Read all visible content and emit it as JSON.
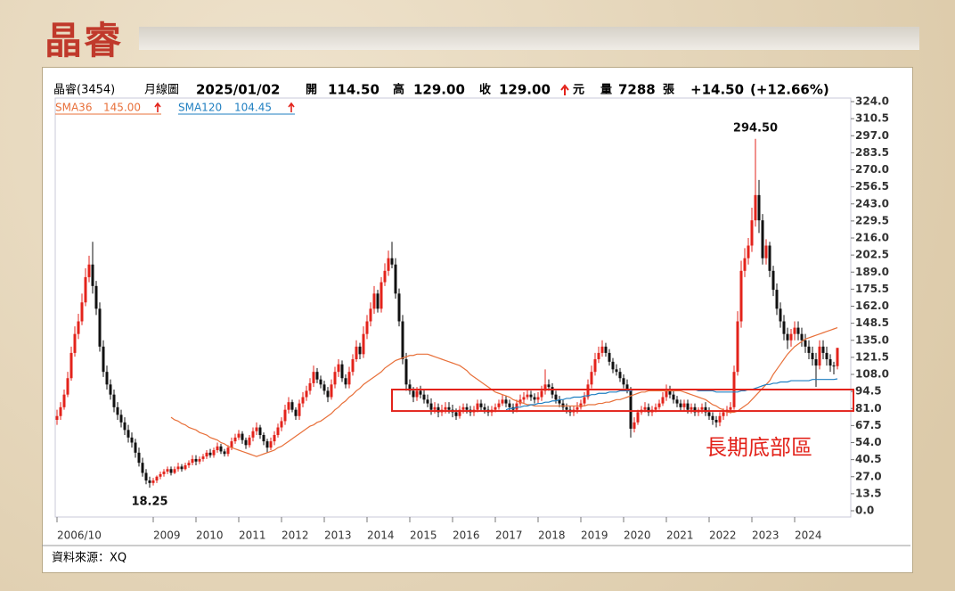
{
  "page_title": "晶睿",
  "source": "資料來源：XQ",
  "header": {
    "stock": "晶睿(3454)",
    "period": "月線圖",
    "date": "2025/01/02",
    "open_label": "開",
    "open": "114.50",
    "high_label": "高",
    "high": "129.00",
    "close_label": "收",
    "close": "129.00",
    "unit": "元",
    "volume_label": "量",
    "volume": "7288",
    "volume_unit": "張",
    "change": "+14.50",
    "change_pct": "(+12.66%)"
  },
  "chart_data": {
    "type": "candlestick",
    "ylim": [
      0,
      324
    ],
    "yticks": [
      {
        "value": 0,
        "label": "0.0"
      },
      13.5,
      {
        "value": 27,
        "label": "27.0"
      },
      40.5,
      {
        "value": 54,
        "label": "54.0"
      },
      67.5,
      {
        "value": 81,
        "label": "81.0"
      },
      94.5,
      {
        "value": 108,
        "label": "108.0"
      },
      121.5,
      {
        "value": 135,
        "label": "135.0"
      },
      148.5,
      {
        "value": 162,
        "label": "162.0"
      },
      175.5,
      {
        "value": 189,
        "label": "189.0"
      },
      202.5,
      {
        "value": 216,
        "label": "216.0"
      },
      229.5,
      {
        "value": 243,
        "label": "243.0"
      },
      256.5,
      {
        "value": 270,
        "label": "270.0"
      },
      283.5,
      {
        "value": 297,
        "label": "297.0"
      },
      310.5,
      {
        "value": 324,
        "label": "324.0"
      }
    ],
    "xticks": [
      "2006/10",
      "2009",
      "2010",
      "2011",
      "2012",
      "2013",
      "2014",
      "2015",
      "2016",
      "2017",
      "2018",
      "2019",
      "2020",
      "2021",
      "2022",
      "2023",
      "2024"
    ],
    "up_color": "#e3231b",
    "down_color": "#111111",
    "open": [
      72,
      75,
      82,
      92,
      105,
      125,
      140,
      150,
      165,
      185,
      195,
      178,
      160,
      130,
      110,
      100,
      92,
      82,
      76,
      70,
      64,
      58,
      54,
      46,
      38,
      30,
      24,
      22,
      24,
      27,
      29,
      31,
      33,
      30,
      33,
      35,
      33,
      36,
      38,
      41,
      39,
      41,
      43,
      46,
      44,
      48,
      51,
      47,
      45,
      50,
      55,
      58,
      61,
      56,
      52,
      58,
      63,
      66,
      60,
      55,
      50,
      55,
      60,
      66,
      71,
      80,
      86,
      80,
      75,
      85,
      90,
      95,
      101,
      110,
      104,
      100,
      95,
      90,
      100,
      110,
      116,
      105,
      100,
      110,
      120,
      130,
      124,
      140,
      150,
      160,
      172,
      160,
      181,
      190,
      200,
      195,
      172,
      150,
      120,
      100,
      95,
      90,
      95,
      92,
      88,
      85,
      80,
      82,
      78,
      80,
      82,
      80,
      78,
      75,
      80,
      82,
      80,
      78,
      80,
      85,
      82,
      80,
      78,
      80,
      82,
      85,
      88,
      85,
      82,
      80,
      85,
      88,
      90,
      92,
      90,
      88,
      90,
      95,
      100,
      98,
      92,
      88,
      85,
      82,
      80,
      78,
      80,
      82,
      85,
      90,
      100,
      110,
      120,
      125,
      130,
      125,
      118,
      112,
      110,
      105,
      100,
      95,
      65,
      70,
      78,
      80,
      82,
      78,
      80,
      82,
      85,
      90,
      95,
      92,
      88,
      85,
      82,
      85,
      80,
      82,
      78,
      80,
      82,
      78,
      75,
      72,
      70,
      75,
      78,
      80,
      82,
      110,
      150,
      190,
      200,
      210,
      230,
      250,
      230,
      200,
      210,
      190,
      175,
      160,
      150,
      140,
      135,
      140,
      145,
      140,
      135,
      130,
      125,
      120,
      115,
      130,
      125,
      120,
      115,
      114.5
    ],
    "high": [
      80,
      86,
      96,
      110,
      130,
      146,
      156,
      172,
      192,
      202,
      213,
      182,
      165,
      135,
      115,
      104,
      96,
      86,
      80,
      74,
      68,
      62,
      57,
      50,
      42,
      33,
      27,
      26,
      28,
      31,
      33,
      35,
      35,
      35,
      38,
      37,
      38,
      40,
      44,
      44,
      43,
      45,
      48,
      49,
      50,
      54,
      53,
      49,
      52,
      58,
      61,
      64,
      63,
      58,
      60,
      66,
      70,
      68,
      62,
      57,
      58,
      63,
      69,
      74,
      84,
      90,
      88,
      82,
      88,
      94,
      99,
      105,
      115,
      113,
      107,
      103,
      98,
      104,
      114,
      120,
      119,
      108,
      114,
      124,
      135,
      133,
      146,
      155,
      165,
      178,
      175,
      185,
      196,
      206,
      213,
      200,
      176,
      155,
      125,
      104,
      98,
      98,
      99,
      96,
      92,
      89,
      86,
      85,
      84,
      86,
      86,
      84,
      81,
      83,
      85,
      85,
      83,
      83,
      88,
      88,
      85,
      83,
      83,
      85,
      88,
      92,
      91,
      88,
      85,
      88,
      92,
      94,
      96,
      95,
      93,
      94,
      99,
      112,
      104,
      101,
      95,
      91,
      88,
      85,
      83,
      83,
      86,
      88,
      94,
      104,
      115,
      125,
      130,
      135,
      133,
      128,
      121,
      116,
      113,
      108,
      104,
      98,
      74,
      80,
      83,
      86,
      85,
      83,
      85,
      88,
      94,
      100,
      99,
      95,
      91,
      88,
      88,
      88,
      85,
      85,
      82,
      85,
      86,
      82,
      78,
      75,
      78,
      81,
      83,
      86,
      115,
      158,
      198,
      208,
      216,
      240,
      294.5,
      262,
      235,
      215,
      213,
      194,
      180,
      165,
      155,
      145,
      144,
      150,
      150,
      145,
      140,
      135,
      130,
      125,
      135,
      135,
      130,
      124,
      118,
      129
    ],
    "low": [
      68,
      72,
      80,
      90,
      103,
      122,
      136,
      147,
      162,
      181,
      172,
      155,
      126,
      106,
      96,
      88,
      78,
      72,
      66,
      60,
      54,
      50,
      42,
      35,
      27,
      21,
      18.25,
      20,
      22,
      25,
      27,
      29,
      28,
      29,
      31,
      31,
      32,
      34,
      36,
      36,
      37,
      39,
      41,
      42,
      42,
      46,
      45,
      43,
      43,
      48,
      53,
      56,
      53,
      49,
      50,
      55,
      60,
      57,
      52,
      46,
      48,
      52,
      58,
      63,
      68,
      77,
      78,
      72,
      72,
      82,
      87,
      92,
      98,
      101,
      97,
      92,
      86,
      88,
      97,
      106,
      102,
      97,
      97,
      107,
      118,
      120,
      121,
      136,
      146,
      156,
      157,
      157,
      178,
      186,
      192,
      168,
      146,
      116,
      95,
      92,
      86,
      87,
      89,
      85,
      82,
      76,
      77,
      74,
      75,
      77,
      77,
      74,
      72,
      73,
      77,
      77,
      75,
      75,
      78,
      79,
      77,
      75,
      75,
      78,
      80,
      83,
      82,
      79,
      77,
      78,
      83,
      85,
      88,
      87,
      85,
      85,
      87,
      92,
      95,
      89,
      85,
      82,
      79,
      77,
      75,
      75,
      77,
      80,
      83,
      88,
      97,
      107,
      117,
      122,
      122,
      115,
      109,
      107,
      102,
      97,
      93,
      58,
      62,
      68,
      76,
      78,
      75,
      75,
      78,
      80,
      83,
      87,
      89,
      85,
      82,
      79,
      79,
      77,
      77,
      75,
      75,
      77,
      75,
      72,
      68,
      66,
      67,
      72,
      75,
      77,
      80,
      107,
      145,
      185,
      195,
      205,
      225,
      220,
      195,
      195,
      185,
      170,
      155,
      145,
      135,
      128,
      130,
      135,
      135,
      130,
      125,
      120,
      115,
      98,
      112,
      120,
      115,
      110,
      108,
      112
    ],
    "close": [
      75,
      82,
      92,
      105,
      125,
      140,
      150,
      165,
      185,
      195,
      178,
      160,
      130,
      110,
      100,
      92,
      82,
      76,
      70,
      64,
      58,
      54,
      46,
      38,
      30,
      24,
      22,
      24,
      27,
      29,
      31,
      33,
      30,
      33,
      35,
      33,
      36,
      38,
      41,
      39,
      41,
      43,
      46,
      44,
      48,
      51,
      47,
      45,
      50,
      55,
      58,
      61,
      56,
      52,
      58,
      63,
      66,
      60,
      55,
      50,
      55,
      60,
      66,
      71,
      80,
      86,
      80,
      75,
      85,
      90,
      95,
      101,
      110,
      104,
      100,
      95,
      90,
      100,
      110,
      116,
      105,
      100,
      110,
      120,
      130,
      124,
      140,
      150,
      160,
      172,
      160,
      181,
      190,
      200,
      195,
      172,
      150,
      120,
      100,
      95,
      90,
      95,
      92,
      88,
      85,
      80,
      82,
      78,
      80,
      82,
      80,
      78,
      75,
      80,
      82,
      80,
      78,
      80,
      85,
      82,
      80,
      78,
      80,
      82,
      85,
      88,
      85,
      82,
      80,
      85,
      88,
      90,
      92,
      90,
      88,
      90,
      95,
      100,
      98,
      92,
      88,
      85,
      82,
      80,
      78,
      80,
      82,
      85,
      90,
      100,
      110,
      120,
      125,
      130,
      125,
      118,
      112,
      110,
      105,
      100,
      95,
      65,
      70,
      78,
      80,
      82,
      78,
      80,
      82,
      85,
      90,
      95,
      92,
      88,
      85,
      82,
      85,
      80,
      82,
      78,
      80,
      82,
      78,
      75,
      72,
      70,
      75,
      78,
      80,
      82,
      110,
      150,
      190,
      200,
      210,
      230,
      250,
      230,
      200,
      210,
      190,
      175,
      160,
      150,
      140,
      135,
      140,
      145,
      140,
      135,
      130,
      125,
      120,
      115,
      130,
      125,
      120,
      115,
      114.5,
      129
    ],
    "series": [
      {
        "name": "SMA36",
        "last": "145.00",
        "color": "#e8703a",
        "values": [
          null,
          null,
          null,
          null,
          null,
          null,
          null,
          null,
          null,
          null,
          null,
          null,
          null,
          null,
          null,
          null,
          null,
          null,
          null,
          null,
          null,
          null,
          null,
          null,
          null,
          null,
          null,
          null,
          null,
          null,
          null,
          null,
          74,
          72,
          71,
          69,
          68,
          66,
          65,
          64,
          62,
          61,
          60,
          58,
          57,
          56,
          54,
          53,
          51,
          50,
          49,
          48,
          47,
          46,
          45,
          44,
          43,
          44,
          45,
          46,
          47,
          48,
          50,
          51,
          53,
          55,
          57,
          59,
          61,
          63,
          65,
          67,
          68,
          70,
          71,
          73,
          75,
          77,
          80,
          82,
          85,
          87,
          90,
          92,
          95,
          97,
          100,
          102,
          104,
          106,
          108,
          110,
          113,
          115,
          117,
          119,
          120,
          121,
          122,
          123,
          123,
          124,
          124,
          124,
          124,
          123,
          122,
          121,
          120,
          119,
          118,
          117,
          116,
          115,
          113,
          111,
          108,
          106,
          104,
          102,
          100,
          98,
          96,
          94,
          93,
          92,
          91,
          90,
          88,
          87,
          86,
          85,
          84,
          84,
          83,
          83,
          83,
          83,
          83,
          83,
          83,
          83,
          83,
          83,
          83,
          83,
          83,
          83,
          83,
          84,
          84,
          84,
          85,
          85,
          86,
          86,
          87,
          88,
          88,
          89,
          90,
          91,
          92,
          93,
          94,
          94,
          95,
          95,
          95,
          95,
          95,
          95,
          95,
          95,
          95,
          95,
          94,
          93,
          92,
          91,
          90,
          89,
          88,
          86,
          84,
          83,
          81,
          80,
          78,
          78,
          78,
          79,
          81,
          83,
          85,
          88,
          91,
          94,
          97,
          100,
          103,
          108,
          112,
          116,
          120,
          124,
          127,
          130,
          132,
          134,
          136,
          137,
          138,
          139,
          140,
          141,
          142,
          143,
          144,
          145
        ]
      },
      {
        "name": "SMA120",
        "last": "104.45",
        "color": "#1f7fc1",
        "values": [
          null,
          null,
          null,
          null,
          null,
          null,
          null,
          null,
          null,
          null,
          null,
          null,
          null,
          null,
          null,
          null,
          null,
          null,
          null,
          null,
          null,
          null,
          null,
          null,
          null,
          null,
          null,
          null,
          null,
          null,
          null,
          null,
          null,
          null,
          null,
          null,
          null,
          null,
          null,
          null,
          null,
          null,
          null,
          null,
          null,
          null,
          null,
          null,
          null,
          null,
          null,
          null,
          null,
          null,
          null,
          null,
          null,
          null,
          null,
          null,
          null,
          null,
          null,
          null,
          null,
          null,
          null,
          null,
          null,
          null,
          null,
          null,
          null,
          null,
          null,
          null,
          null,
          null,
          null,
          null,
          null,
          null,
          null,
          null,
          null,
          null,
          null,
          null,
          null,
          null,
          null,
          null,
          null,
          null,
          null,
          null,
          null,
          null,
          null,
          null,
          null,
          null,
          null,
          null,
          null,
          null,
          null,
          null,
          null,
          null,
          null,
          null,
          null,
          null,
          null,
          null,
          null,
          null,
          null,
          null,
          null,
          null,
          null,
          null,
          null,
          null,
          80,
          81,
          81,
          82,
          82,
          83,
          83,
          84,
          84,
          85,
          85,
          86,
          86,
          87,
          87,
          88,
          88,
          89,
          89,
          90,
          90,
          90,
          91,
          91,
          92,
          92,
          93,
          93,
          93,
          94,
          94,
          94,
          95,
          95,
          95,
          95,
          96,
          96,
          96,
          96,
          96,
          96,
          96,
          96,
          96,
          96,
          96,
          96,
          96,
          96,
          96,
          96,
          96,
          96,
          95,
          95,
          95,
          95,
          95,
          94,
          94,
          94,
          94,
          94,
          94,
          94,
          95,
          95,
          96,
          96,
          97,
          98,
          99,
          100,
          100,
          101,
          101,
          102,
          102,
          102,
          103,
          103,
          103,
          103,
          103,
          103,
          104,
          104,
          104,
          104,
          104,
          104,
          104,
          104.45
        ]
      }
    ],
    "annotations": [
      {
        "text": "294.50",
        "value": 294.5
      },
      {
        "text": "18.25",
        "value": 18.25
      }
    ],
    "zone": {
      "label": "長期底部區",
      "low": 79,
      "high": 96
    }
  }
}
